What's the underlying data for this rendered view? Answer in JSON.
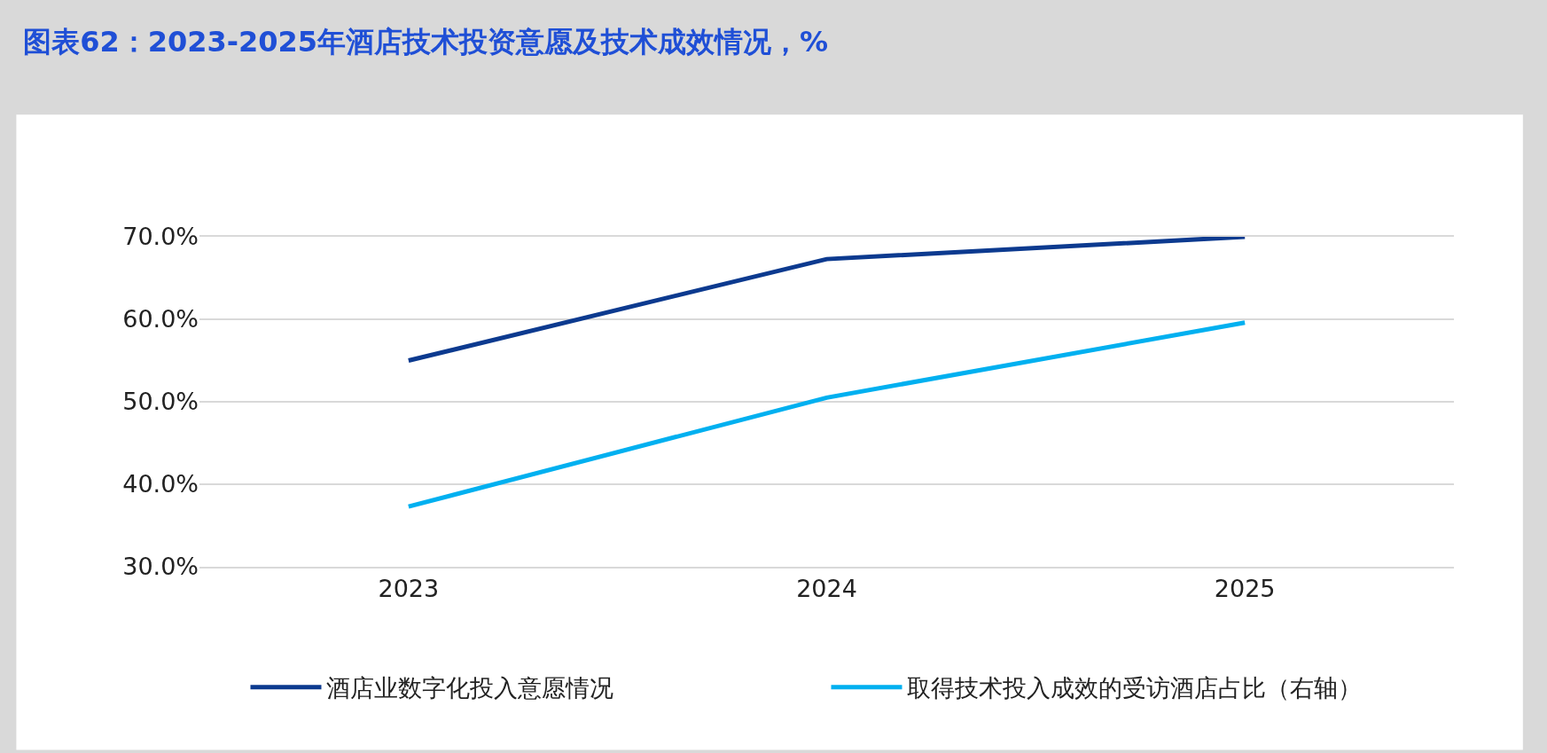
{
  "chart_data": {
    "type": "line",
    "title": "图表62：2023-2025年酒店技术投资意愿及技术成效情况，%",
    "categories": [
      "2023",
      "2024",
      "2025"
    ],
    "series": [
      {
        "name": "酒店业数字化投入意愿情况",
        "color": "#0c3a8f",
        "values": [
          55.0,
          67.3,
          70.0
        ]
      },
      {
        "name": "取得技术投入成效的受访酒店占比（右轴）",
        "color": "#00b0f0",
        "values": [
          37.3,
          50.5,
          59.6
        ]
      }
    ],
    "ylim": [
      30,
      70
    ],
    "yticks": [
      {
        "value": 30,
        "label": "30.0%"
      },
      {
        "value": 40,
        "label": "40.0%"
      },
      {
        "value": 50,
        "label": "50.0%"
      },
      {
        "value": 60,
        "label": "60.0%"
      },
      {
        "value": 70,
        "label": "70.0%"
      }
    ],
    "grid": "y",
    "legend": "bottom",
    "marker": "none",
    "line_style": "solid"
  }
}
